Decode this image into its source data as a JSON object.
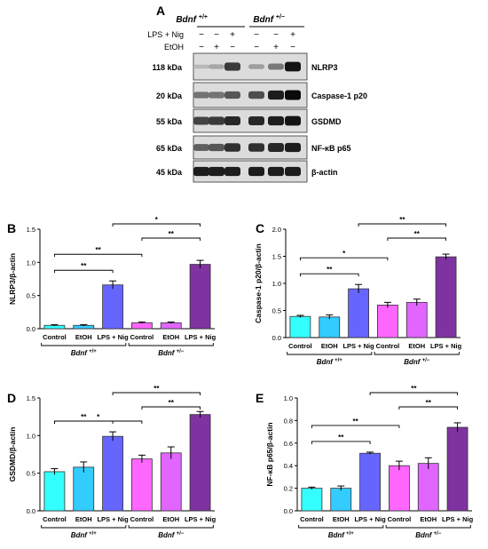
{
  "panel_a": {
    "letter": "A",
    "group_left": "Bdnf",
    "group_left_sup": "+/+",
    "group_right": "Bdnf",
    "group_right_sup": "+/−",
    "row_labels": [
      "LPS + Nig",
      "EtOH"
    ],
    "treatment_marks": [
      [
        "−",
        "−",
        "+",
        "−",
        "−",
        "+"
      ],
      [
        "−",
        "+",
        "−",
        "−",
        "+",
        "−"
      ]
    ],
    "blots": [
      {
        "kda": "118 kDa",
        "name": "NLRP3",
        "intensity": [
          0.08,
          0.18,
          0.75,
          0.22,
          0.42,
          0.95
        ]
      },
      {
        "kda": "20 kDa",
        "name": "Caspase-1 p20",
        "intensity": [
          0.45,
          0.45,
          0.6,
          0.65,
          0.9,
          1.0
        ]
      },
      {
        "kda": "55 kDa",
        "name": "GSDMD",
        "intensity": [
          0.7,
          0.75,
          0.85,
          0.85,
          0.9,
          0.95
        ]
      },
      {
        "kda": "65 kDa",
        "name": "NF-κB p65",
        "intensity": [
          0.55,
          0.6,
          0.8,
          0.8,
          0.85,
          0.9
        ]
      },
      {
        "kda": "45 kDa",
        "name": "β-actin",
        "intensity": [
          0.9,
          0.9,
          0.9,
          0.9,
          0.9,
          0.9
        ]
      }
    ]
  },
  "colors": [
    "#33ffff",
    "#33ccff",
    "#6666ff",
    "#ff66ff",
    "#e066ff",
    "#7f33a0"
  ],
  "chart_data": [
    {
      "panel": "B",
      "type": "bar",
      "ylabel": "NLRP3/β-actin",
      "categories": [
        "Control",
        "EtOH",
        "LPS + Nig",
        "Control",
        "EtOH",
        "LPS + Nig"
      ],
      "values": [
        0.05,
        0.05,
        0.66,
        0.09,
        0.09,
        0.97
      ],
      "errors": [
        0.01,
        0.01,
        0.06,
        0.01,
        0.01,
        0.06
      ],
      "ylim": [
        0,
        1.5
      ],
      "yticks": [
        "0.0",
        "0.5",
        "1.0",
        "1.5"
      ],
      "ytick_values": [
        0,
        0.5,
        1.0,
        1.5
      ],
      "groups": [
        {
          "name": "Bdnf",
          "sup": "+/+"
        },
        {
          "name": "Bdnf",
          "sup": "+/−"
        }
      ],
      "brackets": [
        {
          "from": 0,
          "to": 2,
          "label": "**"
        },
        {
          "from": 0,
          "to": 3,
          "label": "**"
        },
        {
          "from": 3,
          "to": 5,
          "label": "**"
        },
        {
          "from": 2,
          "to": 5,
          "label": "*"
        }
      ]
    },
    {
      "panel": "C",
      "type": "bar",
      "ylabel": "Caspase-1 p20/β-actin",
      "categories": [
        "Control",
        "EtOH",
        "LPS + Nig",
        "Control",
        "EtOH",
        "LPS + Nig"
      ],
      "values": [
        0.39,
        0.38,
        0.9,
        0.6,
        0.65,
        1.49
      ],
      "errors": [
        0.02,
        0.04,
        0.08,
        0.05,
        0.06,
        0.05
      ],
      "ylim": [
        0,
        2.0
      ],
      "yticks": [
        "0.0",
        "0.5",
        "1.0",
        "1.5",
        "2.0"
      ],
      "ytick_values": [
        0,
        0.5,
        1.0,
        1.5,
        2.0
      ],
      "groups": [
        {
          "name": "Bdnf",
          "sup": "+/+"
        },
        {
          "name": "Bdnf",
          "sup": "+/−"
        }
      ],
      "brackets": [
        {
          "from": 0,
          "to": 2,
          "label": "**"
        },
        {
          "from": 0,
          "to": 3,
          "label": "*"
        },
        {
          "from": 3,
          "to": 5,
          "label": "**"
        },
        {
          "from": 2,
          "to": 5,
          "label": "**"
        }
      ]
    },
    {
      "panel": "D",
      "type": "bar",
      "ylabel": "GSDMD/β-actin",
      "categories": [
        "Control",
        "EtOH",
        "LPS + Nig",
        "Control",
        "EtOH",
        "LPS + Nig"
      ],
      "values": [
        0.52,
        0.58,
        0.99,
        0.69,
        0.77,
        1.28
      ],
      "errors": [
        0.04,
        0.07,
        0.06,
        0.05,
        0.08,
        0.04
      ],
      "ylim": [
        0,
        1.5
      ],
      "yticks": [
        "0.0",
        "0.5",
        "1.0",
        "1.5"
      ],
      "ytick_values": [
        0,
        0.5,
        1.0,
        1.5
      ],
      "groups": [
        {
          "name": "Bdnf",
          "sup": "+/+"
        },
        {
          "name": "Bdnf",
          "sup": "+/−"
        }
      ],
      "brackets": [
        {
          "from": 0,
          "to": 2,
          "label": "**"
        },
        {
          "from": 0,
          "to": 3,
          "label": "*"
        },
        {
          "from": 3,
          "to": 5,
          "label": "**"
        },
        {
          "from": 2,
          "to": 5,
          "label": "**"
        }
      ]
    },
    {
      "panel": "E",
      "type": "bar",
      "ylabel": "NF-κB p65/β-actin",
      "categories": [
        "Control",
        "EtOH",
        "LPS + Nig",
        "Control",
        "EtOH",
        "LPS + Nig"
      ],
      "values": [
        0.2,
        0.2,
        0.51,
        0.4,
        0.42,
        0.74
      ],
      "errors": [
        0.01,
        0.02,
        0.01,
        0.04,
        0.05,
        0.04
      ],
      "ylim": [
        0,
        1.0
      ],
      "yticks": [
        "0.0",
        "0.2",
        "0.4",
        "0.6",
        "0.8",
        "1.0"
      ],
      "ytick_values": [
        0,
        0.2,
        0.4,
        0.6,
        0.8,
        1.0
      ],
      "groups": [
        {
          "name": "Bdnf",
          "sup": "+/+"
        },
        {
          "name": "Bdnf",
          "sup": "+/−"
        }
      ],
      "brackets": [
        {
          "from": 0,
          "to": 2,
          "label": "**"
        },
        {
          "from": 0,
          "to": 3,
          "label": "**"
        },
        {
          "from": 3,
          "to": 5,
          "label": "**"
        },
        {
          "from": 2,
          "to": 5,
          "label": "**"
        }
      ]
    }
  ]
}
